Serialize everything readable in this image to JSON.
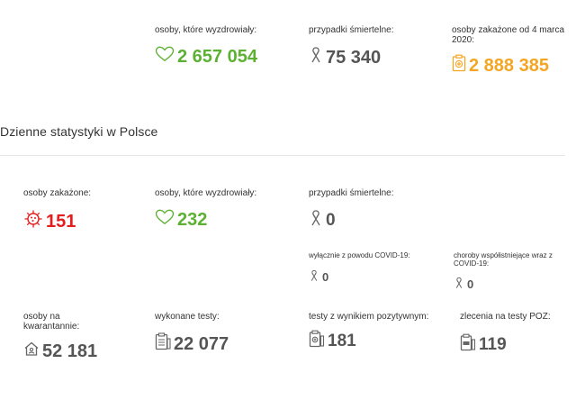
{
  "totals": {
    "recovered_label": "osoby, które wyzdrowiały:",
    "recovered_value": "2 657 054",
    "deaths_label": "przypadki śmiertelne:",
    "deaths_value": "75 340",
    "infected_label": "osoby zakażone od 4 marca 2020:",
    "infected_value": "2 888 385"
  },
  "daily": {
    "title": "Dzienne statystyki w Polsce",
    "infected_label": "osoby zakażone:",
    "infected_value": "151",
    "recovered_label": "osoby, które wyzdrowiały:",
    "recovered_value": "232",
    "deaths_label": "przypadki śmiertelne:",
    "deaths_value": "0",
    "covid_only_label": "wyłącznie z powodu COVID-19:",
    "covid_only_value": "0",
    "comorbid_label": "choroby współistniejące wraz z COVID-19:",
    "comorbid_value": "0",
    "quarantine_label": "osoby na kwarantannie:",
    "quarantine_value": "52 181",
    "tests_label": "wykonane testy:",
    "tests_value": "22 077",
    "positive_tests_label": "testy z wynikiem pozytywnym:",
    "positive_tests_value": "181",
    "poz_orders_label": "zlecenia na testy POZ:",
    "poz_orders_value": "119"
  },
  "colors": {
    "green": "#5cb132",
    "gray": "#555555",
    "orange": "#f4a623",
    "red": "#e41d1d"
  },
  "icons": {
    "heart": "heart-icon",
    "ribbon": "ribbon-icon",
    "clipboard": "medical-clipboard-icon",
    "virus": "virus-icon",
    "house": "house-icon",
    "tests": "test-sheet-icon",
    "positive": "positive-test-icon",
    "poz": "poz-test-icon"
  }
}
